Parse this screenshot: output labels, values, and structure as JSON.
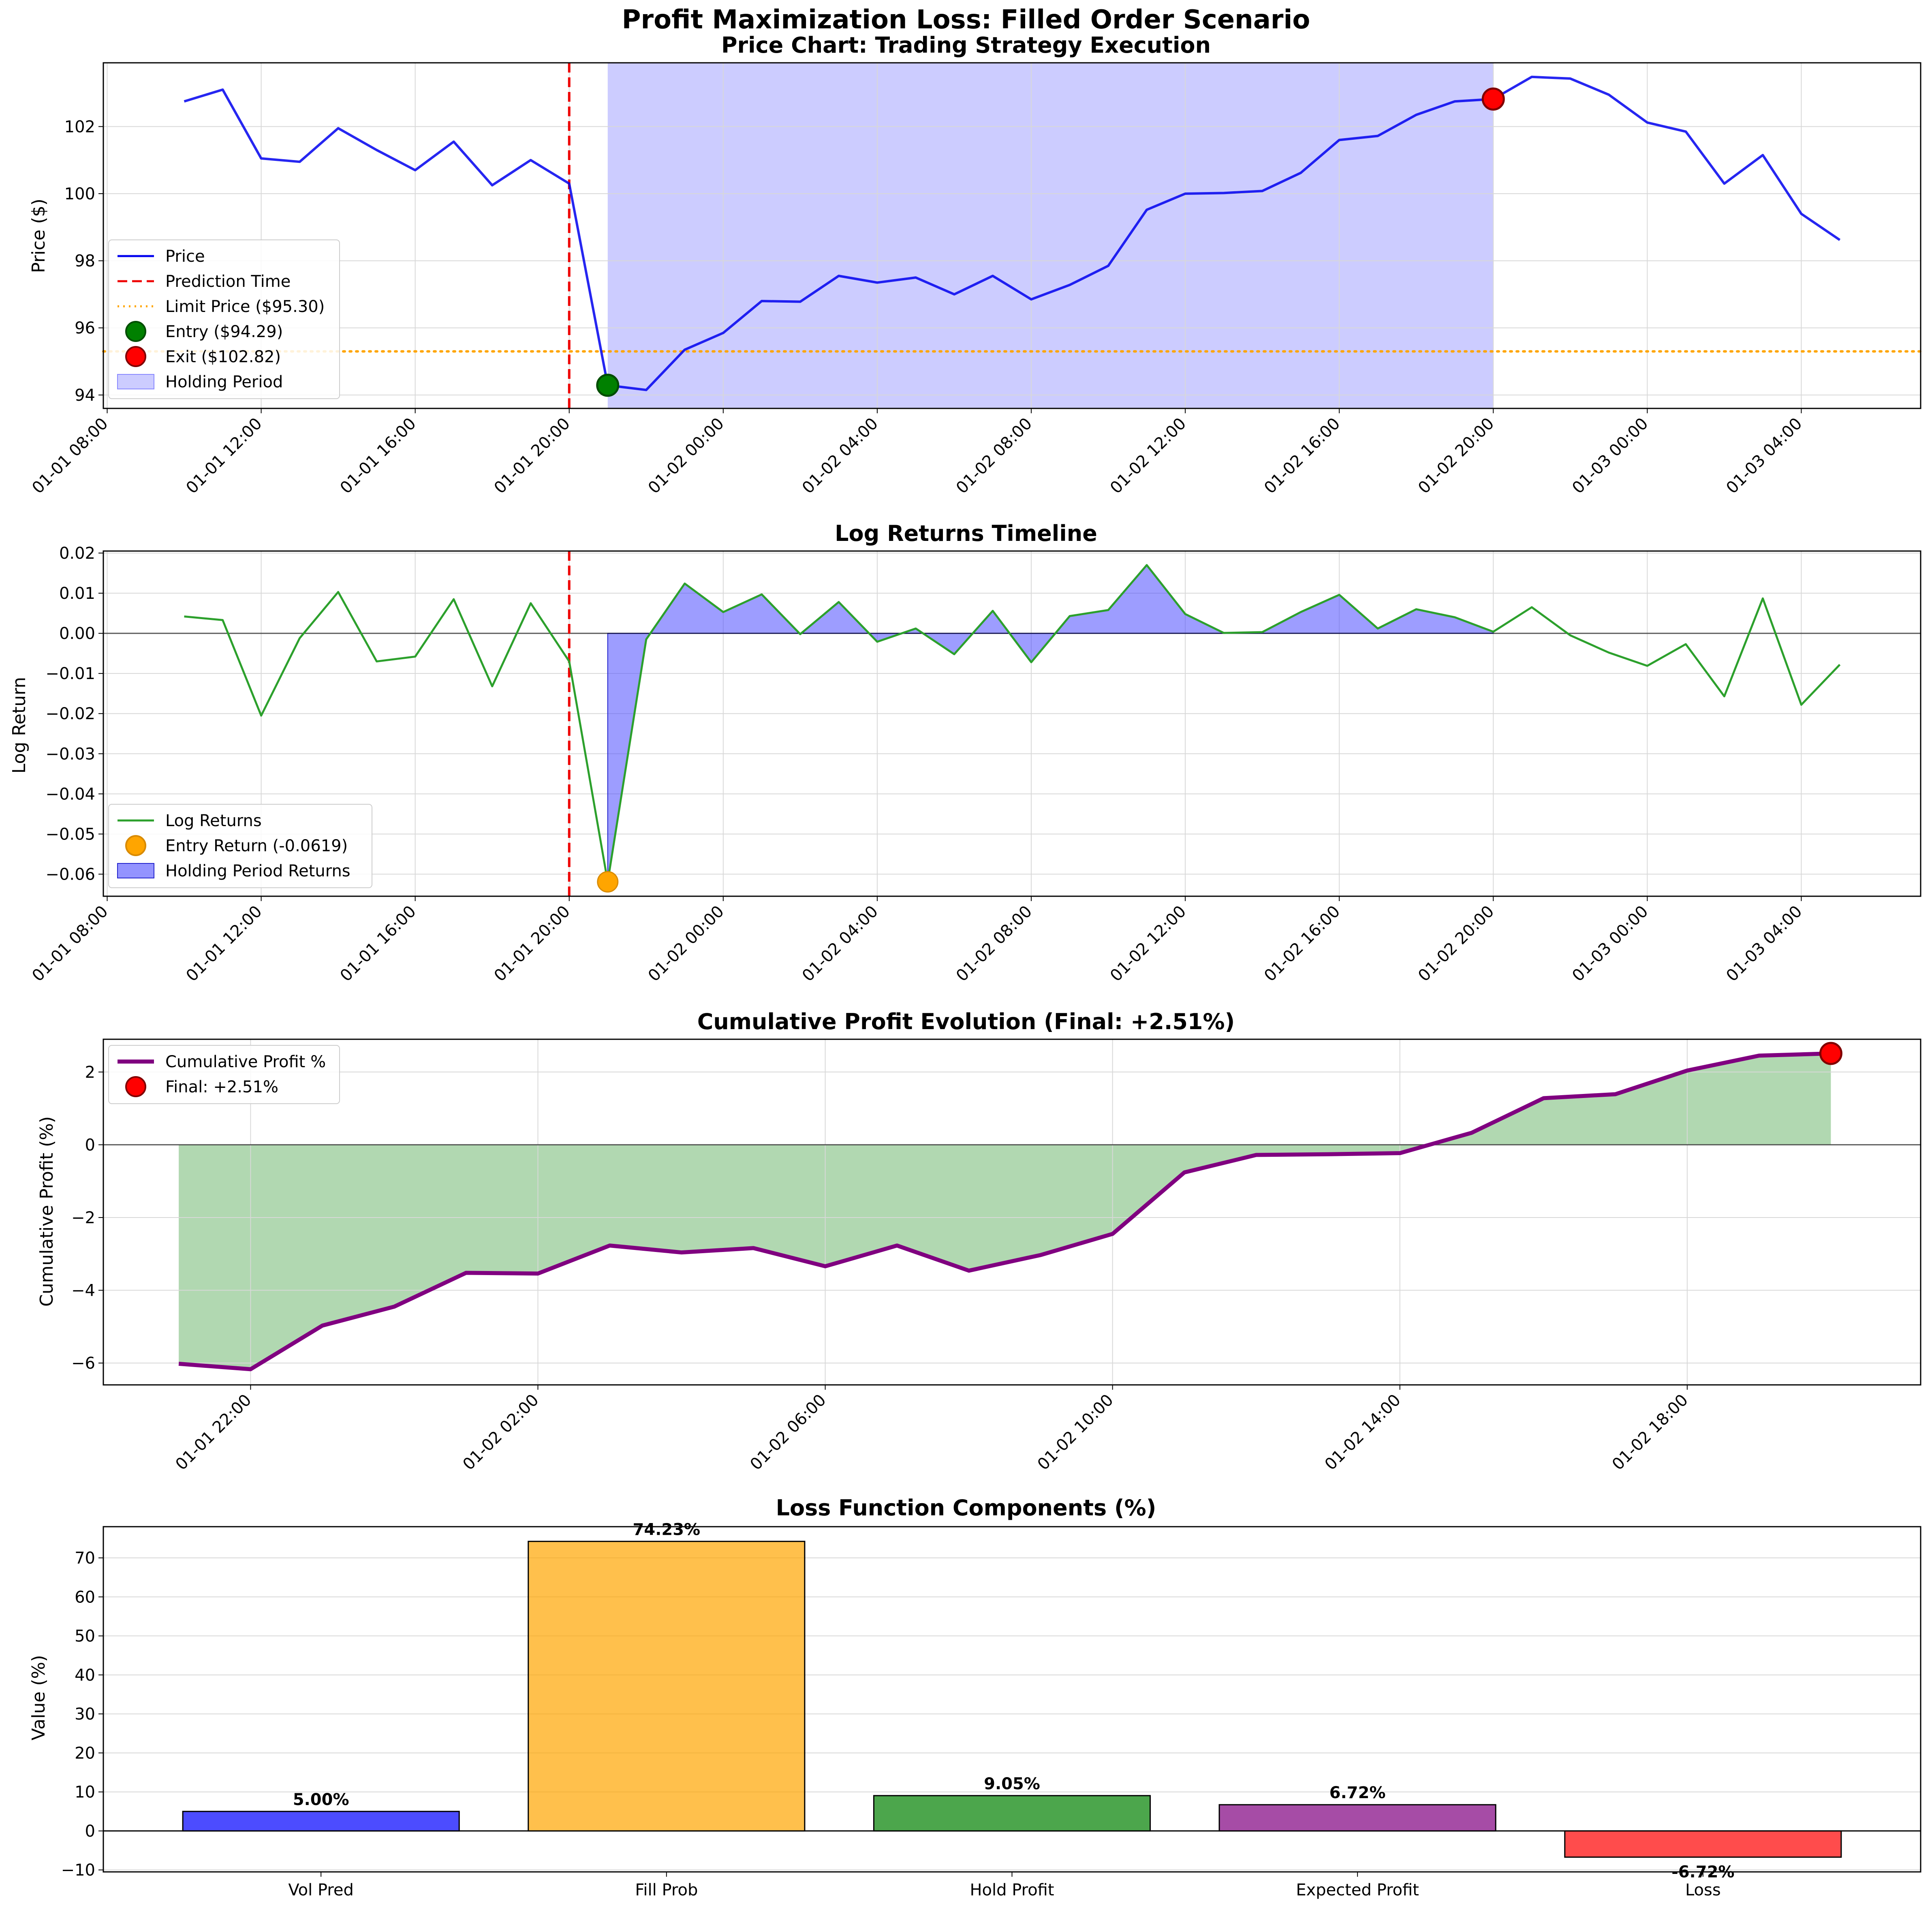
{
  "figure_title": "Profit Maximization Loss: Filled Order Scenario",
  "colors": {
    "price": "#0000ee",
    "prediction": "#ee0000",
    "limit": "#ffa500",
    "holding_fill": "#aaaaff",
    "log_returns": "#2ca02c",
    "cum_profit": "#800080",
    "cum_fill": "#90c890",
    "entry_marker": "#008000",
    "exit_marker": "#ff0000",
    "entry_return_marker": "#ffa500"
  },
  "chart_data": [
    {
      "type": "line",
      "title": "Price Chart: Trading Strategy Execution",
      "xlabel": "",
      "ylabel": "Price ($)",
      "x_start": "01-01 10:00",
      "x_step_hours": 1,
      "xlim_hours": [
        -2.1,
        45.1
      ],
      "ylim": [
        93.6,
        103.9
      ],
      "yticks": [
        94,
        96,
        98,
        100,
        102
      ],
      "xticks": [
        {
          "h": -2,
          "label": "01-01 08:00"
        },
        {
          "h": 2,
          "label": "01-01 12:00"
        },
        {
          "h": 6,
          "label": "01-01 16:00"
        },
        {
          "h": 10,
          "label": "01-01 20:00"
        },
        {
          "h": 14,
          "label": "01-02 00:00"
        },
        {
          "h": 18,
          "label": "01-02 04:00"
        },
        {
          "h": 22,
          "label": "01-02 08:00"
        },
        {
          "h": 26,
          "label": "01-02 12:00"
        },
        {
          "h": 30,
          "label": "01-02 16:00"
        },
        {
          "h": 34,
          "label": "01-02 20:00"
        },
        {
          "h": 38,
          "label": "01-03 00:00"
        },
        {
          "h": 42,
          "label": "01-03 04:00"
        }
      ],
      "grid": true,
      "legend_position": "lower-left",
      "price": [
        102.75,
        103.1,
        101.05,
        100.95,
        101.95,
        101.3,
        100.7,
        101.55,
        100.25,
        101.0,
        100.3,
        94.29,
        94.15,
        95.35,
        95.85,
        96.8,
        96.78,
        97.55,
        97.35,
        97.5,
        97.0,
        97.55,
        96.85,
        97.28,
        97.85,
        99.52,
        100.0,
        100.02,
        100.08,
        100.62,
        101.6,
        101.72,
        102.35,
        102.75,
        102.82,
        103.48,
        103.43,
        102.95,
        102.12,
        101.85,
        100.3,
        101.15,
        99.4,
        98.62
      ],
      "prediction_time_h": 10,
      "limit_price": 95.3,
      "holding_start_h": 11,
      "holding_end_h": 34,
      "entry": {
        "h": 11,
        "price": 94.29
      },
      "exit": {
        "h": 34,
        "price": 102.82
      },
      "legend": [
        "Price",
        "Prediction Time",
        "Limit Price ($95.30)",
        "Entry ($94.29)",
        "Exit ($102.82)",
        "Holding Period"
      ]
    },
    {
      "type": "line",
      "title": "Log Returns Timeline",
      "xlabel": "",
      "ylabel": "Log Return",
      "x_start": "01-01 10:00",
      "x_step_hours": 1,
      "xlim_hours": [
        -2.1,
        45.1
      ],
      "ylim": [
        -0.0655,
        0.0205
      ],
      "yticks": [
        -0.06,
        -0.05,
        -0.04,
        -0.03,
        -0.02,
        -0.01,
        0.0,
        0.01,
        0.02
      ],
      "ytick_labels": [
        "−0.06",
        "−0.05",
        "−0.04",
        "−0.03",
        "−0.02",
        "−0.01",
        "0.00",
        "0.01",
        "0.02"
      ],
      "xticks": [
        {
          "h": -2,
          "label": "01-01 08:00"
        },
        {
          "h": 2,
          "label": "01-01 12:00"
        },
        {
          "h": 6,
          "label": "01-01 16:00"
        },
        {
          "h": 10,
          "label": "01-01 20:00"
        },
        {
          "h": 14,
          "label": "01-02 00:00"
        },
        {
          "h": 18,
          "label": "01-02 04:00"
        },
        {
          "h": 22,
          "label": "01-02 08:00"
        },
        {
          "h": 26,
          "label": "01-02 12:00"
        },
        {
          "h": 30,
          "label": "01-02 16:00"
        },
        {
          "h": 34,
          "label": "01-02 20:00"
        },
        {
          "h": 38,
          "label": "01-03 00:00"
        },
        {
          "h": 42,
          "label": "01-03 04:00"
        }
      ],
      "grid": true,
      "legend_position": "lower-left",
      "returns": [
        0.0042,
        0.0033,
        -0.0205,
        -0.0012,
        0.0103,
        -0.007,
        -0.0058,
        0.0085,
        -0.0132,
        0.0075,
        -0.007,
        -0.0619,
        -0.0015,
        0.0124,
        0.0053,
        0.0097,
        -0.0002,
        0.0078,
        -0.0021,
        0.0012,
        -0.0052,
        0.0056,
        -0.0072,
        0.0043,
        0.0058,
        0.017,
        0.0048,
        0.0001,
        0.0003,
        0.0053,
        0.0096,
        0.0012,
        0.006,
        0.004,
        0.0004,
        0.0065,
        -0.0005,
        -0.0048,
        -0.0081,
        -0.0027,
        -0.0157,
        0.0087,
        -0.0178,
        -0.0078
      ],
      "prediction_time_h": 10,
      "holding_start_h": 11,
      "holding_end_h": 34,
      "entry_return": {
        "h": 11,
        "value": -0.0619
      },
      "legend": [
        "Log Returns",
        "Entry Return (-0.0619)",
        "Holding Period Returns"
      ]
    },
    {
      "type": "area",
      "title": "Cumulative Profit Evolution (Final: +2.51%)",
      "xlabel": "",
      "ylabel": "Cumulative Profit (%)",
      "x_start": "01-01 21:00",
      "x_step_hours": 1,
      "xlim_hours": [
        19.95,
        45.25
      ],
      "ylim": [
        -6.6,
        2.9
      ],
      "yticks": [
        -6,
        -4,
        -2,
        0,
        2
      ],
      "ytick_labels": [
        "−6",
        "−4",
        "−2",
        "0",
        "2"
      ],
      "xticks": [
        {
          "h": 22,
          "label": "01-01 22:00"
        },
        {
          "h": 26,
          "label": "01-02 02:00"
        },
        {
          "h": 30,
          "label": "01-02 06:00"
        },
        {
          "h": 34,
          "label": "01-02 10:00"
        },
        {
          "h": 38,
          "label": "01-02 14:00"
        },
        {
          "h": 42,
          "label": "01-02 18:00"
        }
      ],
      "grid": true,
      "legend_position": "top-left",
      "values": [
        -6.02,
        -6.17,
        -4.97,
        -4.45,
        -3.52,
        -3.54,
        -2.77,
        -2.96,
        -2.84,
        -3.34,
        -2.77,
        -3.46,
        -3.03,
        -2.45,
        -0.76,
        -0.28,
        -0.26,
        -0.23,
        0.33,
        1.28,
        1.39,
        2.04,
        2.45,
        2.51
      ],
      "final": {
        "value": 2.51
      },
      "legend": [
        "Cumulative Profit %",
        "Final: +2.51%"
      ]
    },
    {
      "type": "bar",
      "title": "Loss Function Components (%)",
      "xlabel": "",
      "ylabel": "Value (%)",
      "categories": [
        "Vol Pred",
        "Fill Prob",
        "Hold Profit",
        "Expected Profit",
        "Loss"
      ],
      "values": [
        5.0,
        74.23,
        9.05,
        6.72,
        -6.72
      ],
      "value_labels": [
        "5.00%",
        "74.23%",
        "9.05%",
        "6.72%",
        "-6.72%"
      ],
      "bar_colors": [
        "#0000ff",
        "#ffa500",
        "#008000",
        "#800080",
        "#ff0000"
      ],
      "ylim": [
        -10.5,
        78.0
      ],
      "yticks": [
        -10,
        0,
        10,
        20,
        30,
        40,
        50,
        60,
        70
      ],
      "ytick_labels": [
        "−10",
        "0",
        "10",
        "20",
        "30",
        "40",
        "50",
        "60",
        "70"
      ],
      "grid": true
    }
  ]
}
